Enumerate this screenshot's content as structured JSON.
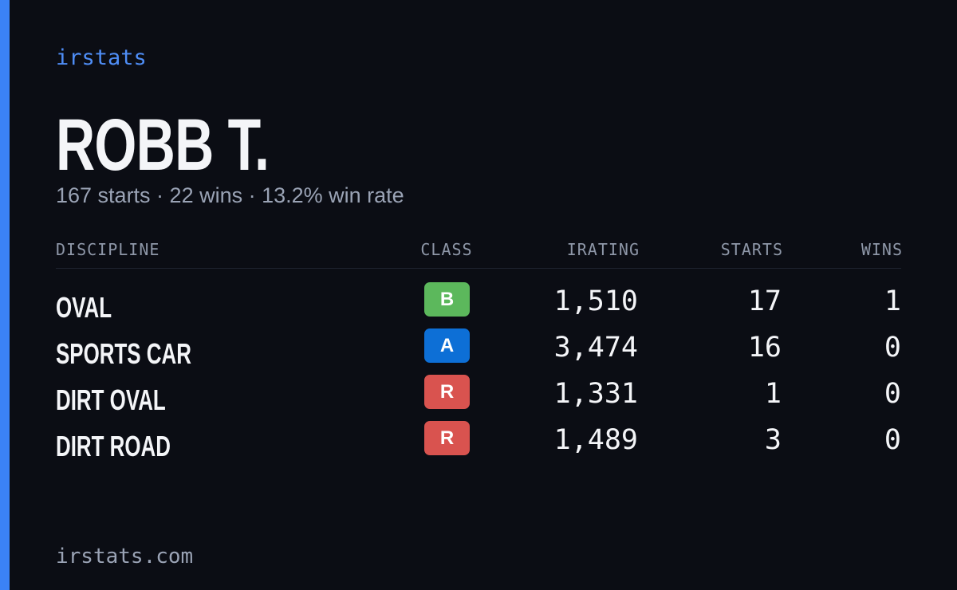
{
  "brand": "irstats",
  "driver": {
    "name": "ROBB T.",
    "summary": "167 starts · 22 wins · 13.2% win rate"
  },
  "table": {
    "headers": [
      "DISCIPLINE",
      "CLASS",
      "IRATING",
      "STARTS",
      "WINS"
    ],
    "rows": [
      {
        "discipline": "OVAL",
        "class": "B",
        "class_color": "#5cb85c",
        "irating": "1,510",
        "starts": "17",
        "wins": "1"
      },
      {
        "discipline": "SPORTS CAR",
        "class": "A",
        "class_color": "#0d6fd6",
        "irating": "3,474",
        "starts": "16",
        "wins": "0"
      },
      {
        "discipline": "DIRT OVAL",
        "class": "R",
        "class_color": "#d9534f",
        "irating": "1,331",
        "starts": "1",
        "wins": "0"
      },
      {
        "discipline": "DIRT ROAD",
        "class": "R",
        "class_color": "#d9534f",
        "irating": "1,489",
        "starts": "3",
        "wins": "0"
      }
    ]
  },
  "footer": "irstats.com"
}
